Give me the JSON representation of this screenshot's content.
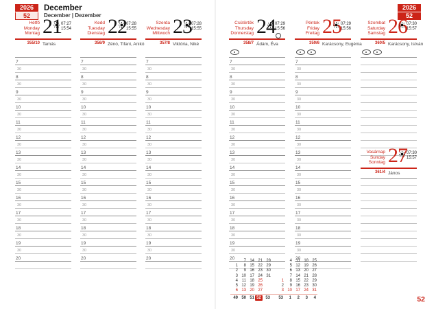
{
  "header": {
    "year": "2026",
    "week": "52",
    "month_primary": "December",
    "month_secondary": "December | Dezember"
  },
  "footer": {
    "page_number": "52"
  },
  "accent_color": "#cc2418",
  "days": [
    {
      "names": [
        "Hétfő",
        "Monday",
        "Montag"
      ],
      "date": "21",
      "date_color": "black",
      "sunrise": "07:27",
      "sunset": "15:54",
      "day_of_year": "355/10",
      "name_day": "Tamás",
      "ovals": 0,
      "moon": false
    },
    {
      "names": [
        "Kedd",
        "Tuesday",
        "Dienstag"
      ],
      "date": "22",
      "date_color": "black",
      "sunrise": "07:28",
      "sunset": "15:55",
      "day_of_year": "356/9",
      "name_day": "Zénó, Tifani, Anikó",
      "ovals": 0,
      "moon": false
    },
    {
      "names": [
        "Szerda",
        "Wednesday",
        "Mittwoch"
      ],
      "date": "23",
      "date_color": "black",
      "sunrise": "07:28",
      "sunset": "15:55",
      "day_of_year": "357/8",
      "name_day": "Viktória, Niké",
      "ovals": 0,
      "moon": false
    },
    {
      "names": [
        "Csütörtök",
        "Thursday",
        "Donnerstag"
      ],
      "date": "24",
      "date_color": "black",
      "sunrise": "07:29",
      "sunset": "15:56",
      "day_of_year": "358/7",
      "name_day": "Ádám, Éva",
      "ovals": 1,
      "moon": true
    },
    {
      "names": [
        "Péntek",
        "Friday",
        "Freitag"
      ],
      "date": "25",
      "date_color": "red",
      "sunrise": "07:29",
      "sunset": "15:56",
      "day_of_year": "359/6",
      "name_day": "Karácsony, Eugénia",
      "ovals": 2,
      "moon": false
    },
    {
      "names": [
        "Szombat",
        "Saturday",
        "Samstag"
      ],
      "date": "26",
      "date_color": "red",
      "sunrise": "07:30",
      "sunset": "15:57",
      "day_of_year": "360/5",
      "name_day": "Karácsony, István",
      "ovals": 2,
      "moon": false
    },
    {
      "names": [
        "Vasárnap",
        "Sunday",
        "Sonntag"
      ],
      "date": "27",
      "date_color": "red",
      "sunrise": "07:30",
      "sunset": "15:57",
      "day_of_year": "361/4",
      "name_day": "János",
      "ovals": 0,
      "moon": false
    }
  ],
  "time_slots": [
    "7",
    "30",
    "8",
    "30",
    "9",
    "30",
    "10",
    "30",
    "11",
    "30",
    "12",
    "30",
    "13",
    "30",
    "14",
    "30",
    "15",
    "30",
    "16",
    "30",
    "17",
    "30",
    "18",
    "30",
    "19",
    "30",
    "20",
    ""
  ],
  "mini_calendar": {
    "months": [
      {
        "rows": [
          [
            "",
            "7",
            "14",
            "21",
            "28"
          ],
          [
            "1",
            "8",
            "15",
            "22",
            "29"
          ],
          [
            "2",
            "9",
            "16",
            "23",
            "30"
          ],
          [
            "3",
            "10",
            "17",
            "24",
            "31"
          ],
          [
            "4",
            "11",
            "18",
            "25",
            ""
          ],
          [
            "5",
            "12",
            "19",
            "26",
            ""
          ],
          [
            "6",
            "13",
            "20",
            "27",
            ""
          ]
        ],
        "red_dates": [
          "6",
          "13",
          "20",
          "25",
          "26",
          "27"
        ],
        "week_numbers": [
          "49",
          "50",
          "51",
          "52",
          "53"
        ],
        "highlight_week": "52"
      },
      {
        "rows": [
          [
            "",
            "4",
            "11",
            "18",
            "25"
          ],
          [
            "",
            "5",
            "12",
            "19",
            "26"
          ],
          [
            "",
            "6",
            "13",
            "20",
            "27"
          ],
          [
            "",
            "7",
            "14",
            "21",
            "28"
          ],
          [
            "1",
            "8",
            "15",
            "22",
            "29"
          ],
          [
            "2",
            "9",
            "16",
            "23",
            "30"
          ],
          [
            "3",
            "10",
            "17",
            "24",
            "31"
          ]
        ],
        "red_dates": [
          "1",
          "3",
          "10",
          "17",
          "24",
          "31"
        ],
        "week_numbers": [
          "53",
          "1",
          "2",
          "3",
          "4"
        ],
        "highlight_week": ""
      }
    ]
  }
}
